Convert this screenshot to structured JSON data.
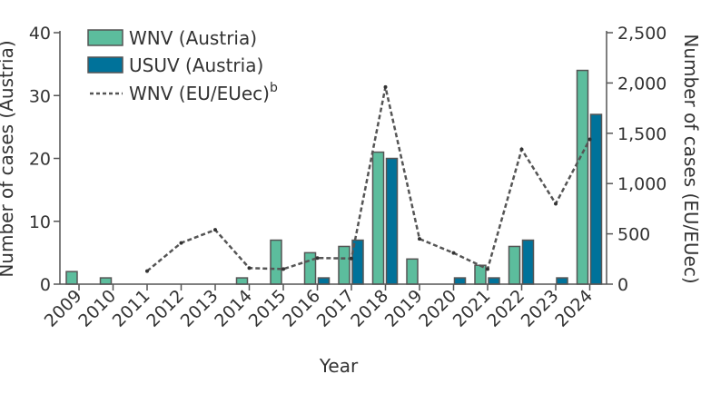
{
  "chart_data": {
    "type": "bar",
    "categories": [
      "2009",
      "2010",
      "2011",
      "2012",
      "2013",
      "2014",
      "2015",
      "2016",
      "2017",
      "2018",
      "2019",
      "2020",
      "2021",
      "2022",
      "2023",
      "2024"
    ],
    "xlabel": "Year",
    "ylabel": "Number of cases (Austria)",
    "ylabel_right": "Number of cases (EU/EUec)",
    "ylim": [
      0,
      40
    ],
    "ylim_right": [
      0,
      2500
    ],
    "yticks": [
      "0",
      "10",
      "20",
      "30",
      "40"
    ],
    "yticks_right": [
      "0",
      "500",
      "1,000",
      "1,500",
      "2,000",
      "2,500"
    ],
    "grid": false,
    "legend_position": "top-left",
    "series": [
      {
        "name": "WNV (Austria)",
        "type": "bar",
        "axis": "left",
        "color": "#5cbd9d",
        "values": [
          2,
          1,
          0,
          0,
          0,
          1,
          7,
          5,
          6,
          21,
          4,
          0,
          3,
          6,
          0,
          34
        ]
      },
      {
        "name": "USUV (Austria)",
        "type": "bar",
        "axis": "left",
        "color": "#00729a",
        "values": [
          0,
          0,
          0,
          0,
          0,
          0,
          0,
          1,
          7,
          20,
          0,
          1,
          1,
          7,
          1,
          27
        ]
      },
      {
        "name": "WNV (EU/EUec)",
        "name_superscript": "b",
        "type": "line",
        "style": "dashed",
        "axis": "right",
        "color": "#555555",
        "values": [
          null,
          null,
          130,
          410,
          540,
          160,
          150,
          260,
          255,
          1960,
          450,
          310,
          150,
          1340,
          800,
          1440
        ]
      }
    ]
  }
}
